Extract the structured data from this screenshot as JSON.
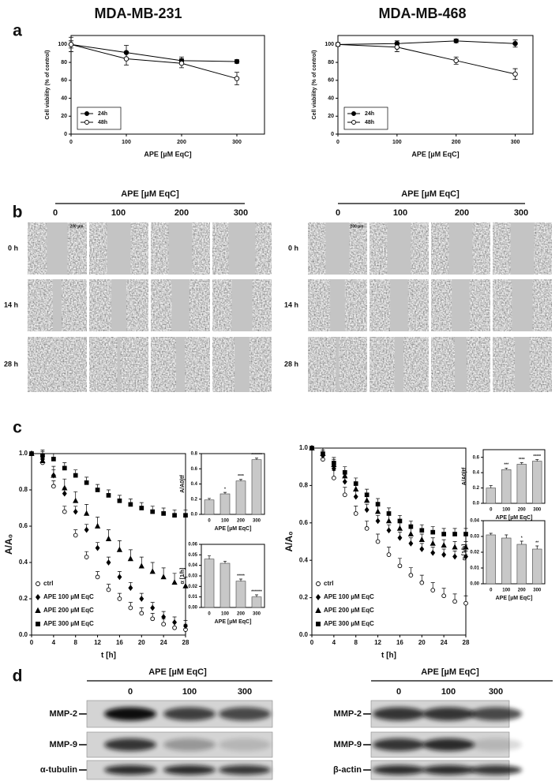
{
  "headers": [
    "MDA-MB-231",
    "MDA-MB-468"
  ],
  "panel_labels": [
    "a",
    "b",
    "c",
    "d"
  ],
  "chart_data": [
    {
      "type": "line",
      "ylabel": "Cell viability (% of control)",
      "xlabel": "APE [µM EqC]",
      "x": [
        0,
        100,
        200,
        300
      ],
      "xlim": [
        0,
        350
      ],
      "ylim": [
        0,
        110
      ],
      "xticks": [
        0,
        100,
        200,
        300
      ],
      "yticks": [
        0,
        20,
        40,
        60,
        80,
        100
      ],
      "legend": "lower left",
      "series": [
        {
          "name": "24h",
          "color": "#000000",
          "marker": "circle",
          "fill": "#000000",
          "values": [
            100,
            91,
            82,
            81
          ],
          "errors": [
            8,
            8,
            4,
            2
          ]
        },
        {
          "name": "48h",
          "color": "#000000",
          "marker": "circle",
          "fill": "#ffffff",
          "values": [
            100,
            84,
            79,
            62
          ],
          "errors": [
            4,
            7,
            5,
            7
          ]
        }
      ]
    },
    {
      "type": "line",
      "ylabel": "Cell viability (% of control)",
      "xlabel": "APE [µM EqC]",
      "x": [
        0,
        100,
        200,
        300
      ],
      "xlim": [
        0,
        330
      ],
      "ylim": [
        0,
        110
      ],
      "xticks": [
        0,
        100,
        200,
        300
      ],
      "yticks": [
        0,
        20,
        40,
        60,
        80,
        100
      ],
      "legend": "lower left",
      "series": [
        {
          "name": "24h",
          "color": "#000000",
          "marker": "circle",
          "fill": "#000000",
          "values": [
            100,
            101,
            104,
            101
          ],
          "errors": [
            2,
            3,
            2,
            4
          ]
        },
        {
          "name": "48h",
          "color": "#000000",
          "marker": "circle",
          "fill": "#ffffff",
          "values": [
            100,
            97,
            82,
            67
          ],
          "errors": [
            2,
            5,
            4,
            6
          ]
        }
      ]
    },
    {
      "type": "scatter",
      "ylabel": "A/A₀",
      "xlabel": "t [h]",
      "x": [
        0,
        2,
        4,
        6,
        8,
        10,
        12,
        14,
        16,
        18,
        20,
        22,
        24,
        26,
        28
      ],
      "xlim": [
        0,
        28
      ],
      "ylim": [
        0,
        1.0
      ],
      "xticks": [
        0,
        4,
        8,
        12,
        16,
        20,
        24,
        28
      ],
      "yticks": [
        {
          "value": 0,
          "label": "0.0"
        },
        0.2,
        0.4,
        0.6,
        0.8,
        {
          "value": 1,
          "label": "1.0"
        }
      ],
      "legend": "lower left",
      "series": [
        {
          "name": "ctrl",
          "color": "#000000",
          "marker": "circle",
          "fill": "#ffffff",
          "error": 0.03,
          "values": [
            1.0,
            0.95,
            0.82,
            0.68,
            0.55,
            0.43,
            0.32,
            0.25,
            0.2,
            0.15,
            0.12,
            0.09,
            0.06,
            0.04,
            0.03
          ]
        },
        {
          "name": "APE 100 µM EqC",
          "color": "#000000",
          "marker": "diamond",
          "fill": "#000000",
          "error": 0.03,
          "values": [
            1.0,
            0.97,
            0.88,
            0.78,
            0.68,
            0.58,
            0.48,
            0.4,
            0.32,
            0.26,
            0.2,
            0.15,
            0.1,
            0.07,
            0.05
          ]
        },
        {
          "name": "APE 200 µM EqC",
          "color": "#000000",
          "marker": "triangle",
          "fill": "#000000",
          "error": 0.05,
          "values": [
            1.0,
            0.96,
            0.88,
            0.81,
            0.74,
            0.67,
            0.6,
            0.53,
            0.47,
            0.42,
            0.38,
            0.35,
            0.32,
            0.29,
            0.27
          ]
        },
        {
          "name": "APE 300 µM EqC",
          "color": "#000000",
          "marker": "square",
          "fill": "#000000",
          "error": 0.03,
          "values": [
            1.0,
            0.99,
            0.97,
            0.92,
            0.88,
            0.84,
            0.8,
            0.77,
            0.74,
            0.72,
            0.7,
            0.68,
            0.67,
            0.66,
            0.66
          ]
        }
      ]
    },
    {
      "type": "bar",
      "ylabel": "A/A0|tf",
      "xlabel": "APE [µM EqC]",
      "color": "#c8c8c8",
      "categories": [
        "0",
        "100",
        "200",
        "300"
      ],
      "values": [
        0.19,
        0.27,
        0.44,
        0.72
      ],
      "errors": [
        0.02,
        0.02,
        0.02,
        0.02
      ],
      "annotations": [
        null,
        "*",
        "****",
        "*******"
      ],
      "ylim": [
        0,
        0.8
      ],
      "yticks": [
        {
          "value": 0,
          "label": "0.0"
        },
        0.2,
        0.4,
        0.6,
        0.8
      ]
    },
    {
      "type": "bar",
      "ylabel": "α [1/h]",
      "xlabel": "APE [µM EqC]",
      "color": "#c8c8c8",
      "categories": [
        "0",
        "100",
        "200",
        "300"
      ],
      "values": [
        0.046,
        0.042,
        0.025,
        0.01
      ],
      "errors": [
        0.003,
        0.002,
        0.002,
        0.002
      ],
      "annotations": [
        null,
        null,
        "*****",
        "*******"
      ],
      "ylim": [
        0,
        0.06
      ],
      "yticks": [
        {
          "value": 0,
          "label": "0.00"
        },
        0.01,
        0.02,
        0.03,
        0.04,
        0.05,
        0.06
      ]
    },
    {
      "type": "scatter",
      "ylabel": "A/A₀",
      "xlabel": "t [h]",
      "x": [
        0,
        2,
        4,
        6,
        8,
        10,
        12,
        14,
        16,
        18,
        20,
        22,
        24,
        26,
        28
      ],
      "xlim": [
        0,
        28
      ],
      "ylim": [
        0,
        1.0
      ],
      "xticks": [
        0,
        4,
        8,
        12,
        16,
        20,
        24,
        28
      ],
      "yticks": [
        {
          "value": 0,
          "label": "0.0"
        },
        0.2,
        0.4,
        0.6,
        0.8,
        {
          "value": 1,
          "label": "1.0"
        }
      ],
      "legend": "lower left",
      "series": [
        {
          "name": "ctrl",
          "color": "#000000",
          "marker": "circle",
          "fill": "#ffffff",
          "error": 0.04,
          "values": [
            1.0,
            0.94,
            0.84,
            0.75,
            0.65,
            0.57,
            0.5,
            0.43,
            0.37,
            0.32,
            0.28,
            0.24,
            0.21,
            0.18,
            0.17
          ]
        },
        {
          "name": "APE 100 µM EqC",
          "color": "#000000",
          "marker": "diamond",
          "fill": "#000000",
          "error": 0.03,
          "values": [
            1.0,
            0.96,
            0.89,
            0.82,
            0.74,
            0.67,
            0.61,
            0.56,
            0.52,
            0.49,
            0.46,
            0.44,
            0.43,
            0.42,
            0.42
          ]
        },
        {
          "name": "APE 200 µM EqC",
          "color": "#000000",
          "marker": "triangle",
          "fill": "#000000",
          "error": 0.03,
          "values": [
            1.0,
            0.97,
            0.91,
            0.85,
            0.78,
            0.72,
            0.66,
            0.61,
            0.57,
            0.54,
            0.51,
            0.49,
            0.48,
            0.47,
            0.47
          ]
        },
        {
          "name": "APE 300 µM EqC",
          "color": "#000000",
          "marker": "square",
          "fill": "#000000",
          "error": 0.03,
          "values": [
            1.0,
            0.97,
            0.92,
            0.87,
            0.81,
            0.75,
            0.7,
            0.65,
            0.61,
            0.58,
            0.56,
            0.55,
            0.54,
            0.54,
            0.54
          ]
        }
      ]
    },
    {
      "type": "bar",
      "ylabel": "A/A0|tf",
      "xlabel": "APE [µM EqC]",
      "color": "#c8c8c8",
      "categories": [
        "0",
        "100",
        "200",
        "300"
      ],
      "values": [
        0.2,
        0.44,
        0.51,
        0.55
      ],
      "errors": [
        0.03,
        0.02,
        0.02,
        0.02
      ],
      "annotations": [
        null,
        "***",
        "****",
        "*****"
      ],
      "ylim": [
        0,
        0.7
      ],
      "yticks": [
        {
          "value": 0,
          "label": "0.0"
        },
        0.2,
        0.4,
        0.6
      ]
    },
    {
      "type": "bar",
      "ylabel": "α [1/h]",
      "xlabel": "APE [µM EqC]",
      "color": "#c8c8c8",
      "categories": [
        "0",
        "100",
        "200",
        "300"
      ],
      "values": [
        0.031,
        0.029,
        0.025,
        0.022
      ],
      "errors": [
        0.001,
        0.002,
        0.002,
        0.002
      ],
      "annotations": [
        null,
        null,
        "*",
        "**"
      ],
      "ylim": [
        0,
        0.04
      ],
      "yticks": [
        {
          "value": 0,
          "label": "0.00"
        },
        0.01,
        0.02,
        0.03,
        0.04
      ]
    }
  ],
  "wound_healing": [
    {
      "axis_label": "APE [µM EqC]",
      "doses": [
        "0",
        "100",
        "200",
        "300"
      ],
      "times": [
        "0 h",
        "14 h",
        "28 h"
      ],
      "scale_label": "200 µm"
    },
    {
      "axis_label": "APE [µM EqC]",
      "doses": [
        "0",
        "100",
        "200",
        "300"
      ],
      "times": [
        "0 h",
        "14 h",
        "28 h"
      ],
      "scale_label": "200 µm"
    }
  ],
  "blots": [
    {
      "axis_label": "APE [µM EqC]",
      "doses": [
        "0",
        "100",
        "300"
      ],
      "rows": [
        "MMP-2",
        "MMP-9",
        "α-tubulin"
      ]
    },
    {
      "axis_label": "APE [µM EqC]",
      "doses": [
        "0",
        "100",
        "300"
      ],
      "rows": [
        "MMP-2",
        "MMP-9",
        "β-actin"
      ]
    }
  ]
}
